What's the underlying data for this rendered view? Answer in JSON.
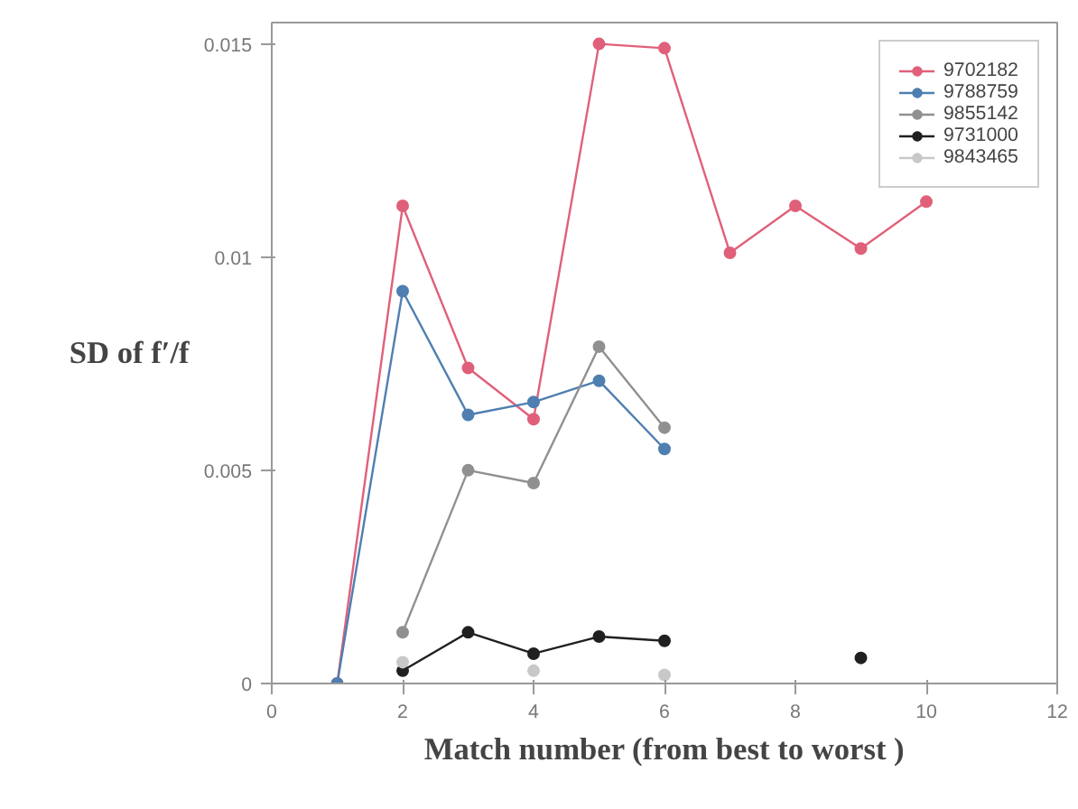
{
  "chart_data": {
    "type": "line",
    "xlabel": "Match number (from best to worst )",
    "ylabel": "SD of f′/f",
    "x": [
      1,
      2,
      3,
      4,
      5,
      6,
      7,
      8,
      9,
      10
    ],
    "series": [
      {
        "name": "9702182",
        "color": "#e0607a",
        "values": [
          0,
          0.0112,
          0.0074,
          0.0062,
          0.015,
          0.0149,
          0.0101,
          0.0112,
          0.0102,
          0.0113
        ]
      },
      {
        "name": "9788759",
        "color": "#4f7fb0",
        "values": [
          0,
          0.0092,
          0.0063,
          0.0066,
          0.0071,
          0.0055,
          null,
          null,
          null,
          null
        ]
      },
      {
        "name": "9855142",
        "color": "#909090",
        "values": [
          null,
          0.0012,
          0.005,
          0.0047,
          0.0079,
          0.006,
          null,
          null,
          null,
          null
        ]
      },
      {
        "name": "9731000",
        "color": "#202020",
        "values": [
          null,
          0.0003,
          0.0012,
          0.0007,
          0.0011,
          0.001,
          null,
          null,
          0.0006,
          null
        ]
      },
      {
        "name": "9843465",
        "color": "#c8c8c8",
        "values": [
          null,
          0.0005,
          null,
          0.0003,
          null,
          0.0002,
          null,
          null,
          null,
          null
        ]
      }
    ],
    "xlim": [
      0,
      12
    ],
    "xticks": [
      0,
      2,
      4,
      6,
      8,
      10,
      12
    ],
    "ylim": [
      0,
      0.0155
    ],
    "yticks": [
      0,
      0.005,
      0.01,
      0.015
    ],
    "grid": false,
    "legend": "top right",
    "marker": "circle",
    "line_style": "solid"
  }
}
